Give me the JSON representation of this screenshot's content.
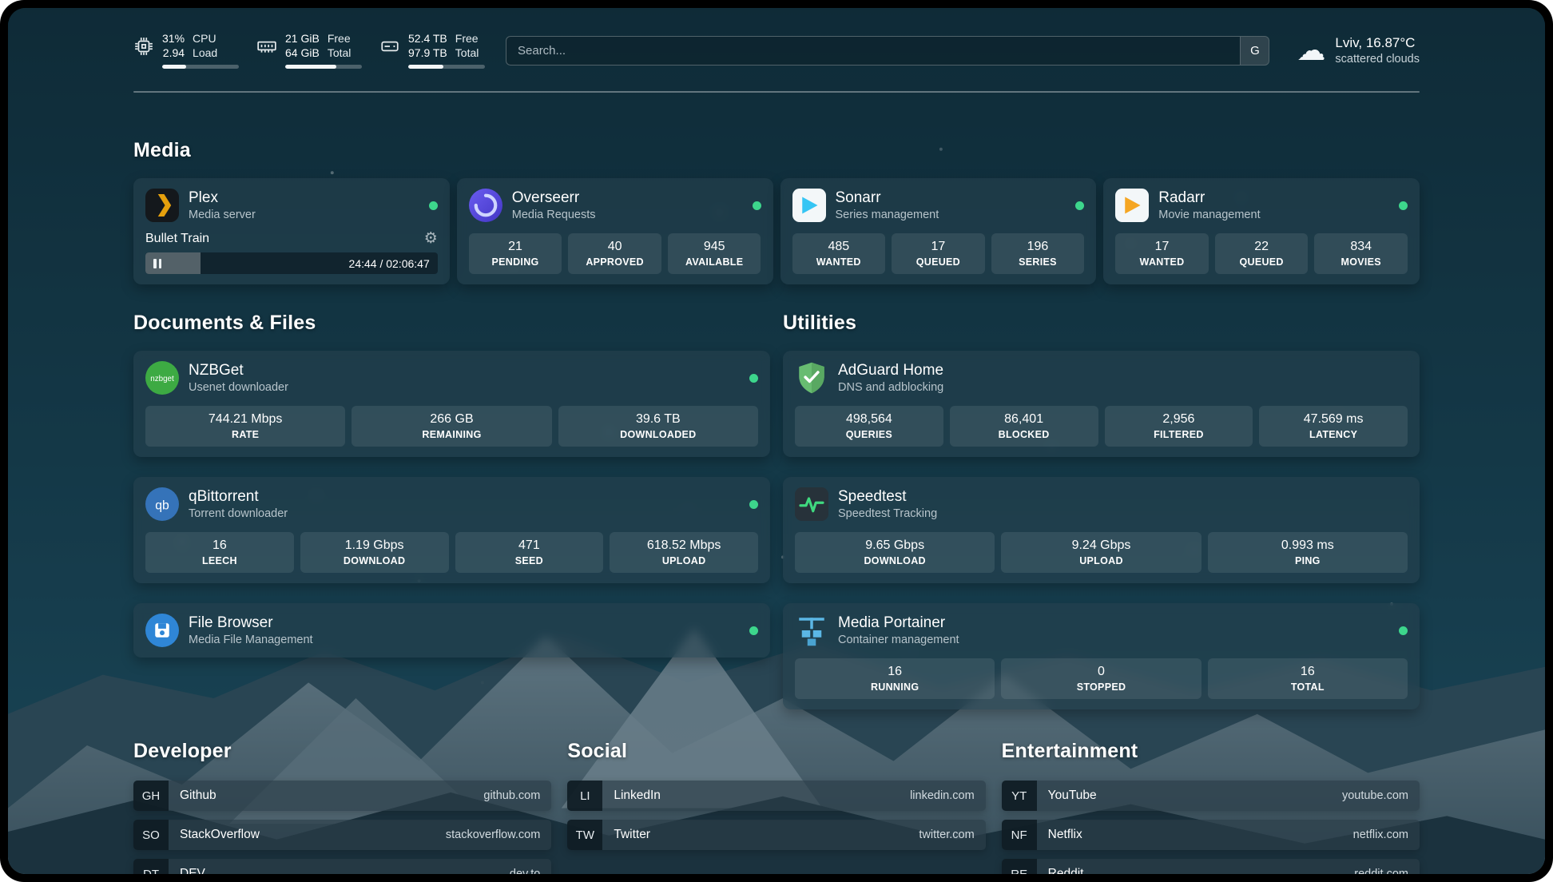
{
  "topbar": {
    "metrics": [
      {
        "icon": "cpu-chip-icon",
        "values": [
          "31%",
          "2.94"
        ],
        "labels": [
          "CPU",
          "Load"
        ],
        "progress": 31
      },
      {
        "icon": "memory-icon",
        "values": [
          "21 GiB",
          "64 GiB"
        ],
        "labels": [
          "Free",
          "Total"
        ],
        "progress": 67
      },
      {
        "icon": "disk-drive-icon",
        "values": [
          "52.4 TB",
          "97.9 TB"
        ],
        "labels": [
          "Free",
          "Total"
        ],
        "progress": 46
      }
    ],
    "search": {
      "placeholder": "Search...",
      "engine_label": "G"
    },
    "weather": {
      "icon": "cloud-icon",
      "location": "Lviv, 16.87°C",
      "condition": "scattered clouds"
    }
  },
  "sections": {
    "media": "Media",
    "documents": "Documents & Files",
    "utilities": "Utilities",
    "developer": "Developer",
    "social": "Social",
    "entertainment": "Entertainment"
  },
  "media_apps": {
    "plex": {
      "name": "Plex",
      "subtitle": "Media server",
      "status": "online",
      "now_playing": "Bullet Train",
      "time": "24:44 / 02:06:47",
      "progress": 19
    },
    "overseerr": {
      "name": "Overseerr",
      "subtitle": "Media Requests",
      "status": "online",
      "stats": [
        {
          "value": "21",
          "label": "PENDING"
        },
        {
          "value": "40",
          "label": "APPROVED"
        },
        {
          "value": "945",
          "label": "AVAILABLE"
        }
      ]
    },
    "sonarr": {
      "name": "Sonarr",
      "subtitle": "Series management",
      "status": "online",
      "stats": [
        {
          "value": "485",
          "label": "WANTED"
        },
        {
          "value": "17",
          "label": "QUEUED"
        },
        {
          "value": "196",
          "label": "SERIES"
        }
      ]
    },
    "radarr": {
      "name": "Radarr",
      "subtitle": "Movie management",
      "status": "online",
      "stats": [
        {
          "value": "17",
          "label": "WANTED"
        },
        {
          "value": "22",
          "label": "QUEUED"
        },
        {
          "value": "834",
          "label": "MOVIES"
        }
      ]
    }
  },
  "document_apps": {
    "nzbget": {
      "name": "NZBGet",
      "subtitle": "Usenet downloader",
      "status": "online",
      "stats": [
        {
          "value": "744.21 Mbps",
          "label": "RATE"
        },
        {
          "value": "266 GB",
          "label": "REMAINING"
        },
        {
          "value": "39.6 TB",
          "label": "DOWNLOADED"
        }
      ]
    },
    "qbittorrent": {
      "name": "qBittorrent",
      "subtitle": "Torrent downloader",
      "status": "online",
      "stats": [
        {
          "value": "16",
          "label": "LEECH"
        },
        {
          "value": "1.19 Gbps",
          "label": "DOWNLOAD"
        },
        {
          "value": "471",
          "label": "SEED"
        },
        {
          "value": "618.52 Mbps",
          "label": "UPLOAD"
        }
      ]
    },
    "filebrowser": {
      "name": "File Browser",
      "subtitle": "Media File Management",
      "status": "online"
    }
  },
  "utility_apps": {
    "adguard": {
      "name": "AdGuard Home",
      "subtitle": "DNS and adblocking",
      "stats": [
        {
          "value": "498,564",
          "label": "QUERIES"
        },
        {
          "value": "86,401",
          "label": "BLOCKED"
        },
        {
          "value": "2,956",
          "label": "FILTERED"
        },
        {
          "value": "47.569 ms",
          "label": "LATENCY"
        }
      ]
    },
    "speedtest": {
      "name": "Speedtest",
      "subtitle": "Speedtest Tracking",
      "stats": [
        {
          "value": "9.65 Gbps",
          "label": "DOWNLOAD"
        },
        {
          "value": "9.24 Gbps",
          "label": "UPLOAD"
        },
        {
          "value": "0.993 ms",
          "label": "PING"
        }
      ]
    },
    "portainer": {
      "name": "Media Portainer",
      "subtitle": "Container management",
      "status": "online",
      "stats": [
        {
          "value": "16",
          "label": "RUNNING"
        },
        {
          "value": "0",
          "label": "STOPPED"
        },
        {
          "value": "16",
          "label": "TOTAL"
        }
      ]
    }
  },
  "bookmarks": {
    "developer": [
      {
        "abbr": "GH",
        "name": "Github",
        "url": "github.com"
      },
      {
        "abbr": "SO",
        "name": "StackOverflow",
        "url": "stackoverflow.com"
      },
      {
        "abbr": "DT",
        "name": "DEV",
        "url": "dev.to"
      }
    ],
    "social": [
      {
        "abbr": "LI",
        "name": "LinkedIn",
        "url": "linkedin.com"
      },
      {
        "abbr": "TW",
        "name": "Twitter",
        "url": "twitter.com"
      }
    ],
    "entertainment": [
      {
        "abbr": "YT",
        "name": "YouTube",
        "url": "youtube.com"
      },
      {
        "abbr": "NF",
        "name": "Netflix",
        "url": "netflix.com"
      },
      {
        "abbr": "RE",
        "name": "Reddit",
        "url": "reddit.com"
      }
    ]
  },
  "colors": {
    "status_online": "#3dd68c",
    "plex_orange": "#e5a00d",
    "sonarr_blue": "#35c5f4",
    "radarr_orange": "#f5a623",
    "adguard_green": "#68bc71",
    "speedtest_pulse": "#3fd97f"
  }
}
